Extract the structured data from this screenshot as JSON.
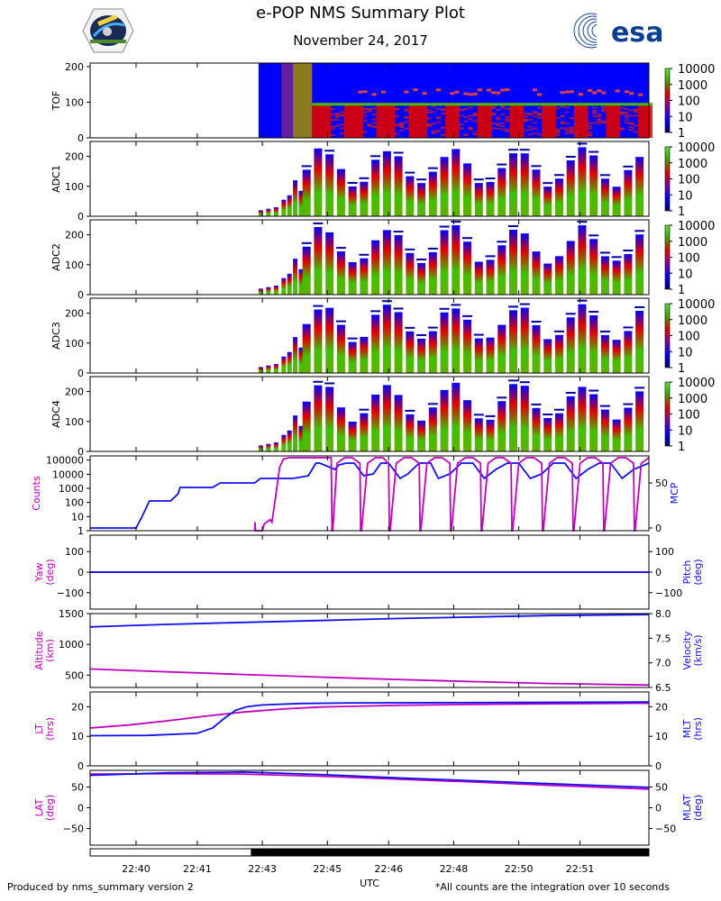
{
  "header": {
    "title": "e-POP NMS Summary Plot",
    "date": "November 24, 2017",
    "logo_left_name": "epop-mission-patch",
    "logo_right_text": "esa"
  },
  "footer": {
    "left": "Produced by nms_summary version 2",
    "right": "*All counts are the integration over 10 seconds",
    "xlabel": "UTC"
  },
  "colors": {
    "magenta": "#c000c0",
    "blue": "#1010ee",
    "spec_blue": "#0000ff",
    "spec_red": "#e00000",
    "spec_green": "#40c000"
  },
  "chart_data": {
    "type": "multi-panel-timeseries",
    "time_ticks": [
      "22:40",
      "22:41",
      "22:43",
      "22:45",
      "22:46",
      "22:48",
      "22:50",
      "22:51"
    ],
    "time_range_min": [
      0,
      14.6
    ],
    "time_tick_positions_min": [
      1.2,
      2.8,
      4.5,
      6.2,
      7.8,
      9.5,
      11.2,
      12.8
    ],
    "colorbar_ticks": [
      "10000",
      "1000",
      "100",
      "10",
      "1"
    ],
    "spectrograms": [
      {
        "name": "TOF",
        "ylabel": "TOF",
        "yticks": [
          0,
          100,
          200
        ],
        "ylim": [
          0,
          210
        ],
        "data_start_min": 4.4
      },
      {
        "name": "ADC1",
        "ylabel": "ADC1",
        "yticks": [
          0,
          100,
          200
        ],
        "ylim": [
          0,
          250
        ],
        "data_start_min": 4.4
      },
      {
        "name": "ADC2",
        "ylabel": "ADC2",
        "yticks": [
          0,
          100,
          200
        ],
        "ylim": [
          0,
          250
        ],
        "data_start_min": 4.4
      },
      {
        "name": "ADC3",
        "ylabel": "ADC3",
        "yticks": [
          0,
          100,
          200
        ],
        "ylim": [
          0,
          250
        ],
        "data_start_min": 4.4
      },
      {
        "name": "ADC4",
        "ylabel": "ADC4",
        "yticks": [
          0,
          100,
          200
        ],
        "ylim": [
          0,
          250
        ],
        "data_start_min": 4.4
      }
    ],
    "line_panels": [
      {
        "name": "counts-mcp",
        "left_label": "Counts",
        "right_label": "MCP",
        "left_ticks": [
          "100000",
          "10000",
          "1000",
          "100",
          "10",
          "1"
        ],
        "left_scale": "log",
        "left_range": [
          1,
          200000
        ],
        "right_ticks": [
          "50",
          "0"
        ],
        "right_range": [
          -3,
          80
        ],
        "series": [
          {
            "name": "MCP",
            "axis": "right",
            "color": "blue",
            "x": [
              0,
              1.2,
              1.35,
              1.55,
              2.1,
              2.3,
              2.35,
              3.2,
              3.4,
              4.3,
              4.45,
              5.3,
              5.7,
              5.9,
              6.0,
              6.4,
              6.5,
              6.7,
              6.9,
              7.15,
              7.4,
              7.6,
              7.8,
              8.1,
              8.3,
              8.6,
              8.9,
              9.1,
              9.4,
              9.7,
              10.0,
              10.3,
              10.6,
              10.9,
              11.2,
              11.5,
              11.8,
              12.1,
              12.4,
              12.7,
              13.0,
              13.3,
              13.6,
              13.9,
              14.2,
              14.6
            ],
            "y": [
              0,
              0,
              12,
              30,
              30,
              38,
              45,
              45,
              50,
              50,
              55,
              55,
              58,
              72,
              72,
              65,
              70,
              72,
              72,
              58,
              60,
              72,
              72,
              55,
              60,
              72,
              72,
              55,
              60,
              72,
              72,
              55,
              65,
              72,
              72,
              55,
              60,
              72,
              72,
              55,
              65,
              72,
              72,
              55,
              65,
              72
            ]
          },
          {
            "name": "Counts",
            "axis": "left",
            "color": "magenta",
            "x": [
              4.3,
              4.31,
              4.32,
              4.5,
              4.55,
              4.7,
              4.75,
              4.85,
              4.95,
              5.05,
              5.2,
              5.4,
              5.6,
              6.3,
              6.32,
              6.34,
              6.45,
              6.65,
              6.85,
              7.05,
              7.07,
              7.09,
              7.25,
              7.45,
              7.65,
              7.8,
              7.82,
              7.84,
              8.0,
              8.2,
              8.4,
              8.6,
              8.62,
              8.64,
              8.8,
              9.0,
              9.2,
              9.4,
              9.42,
              9.44,
              9.6,
              9.8,
              10.0,
              10.2,
              10.22,
              10.24,
              10.4,
              10.6,
              10.8,
              11.0,
              11.02,
              11.04,
              11.2,
              11.4,
              11.6,
              11.8,
              11.82,
              11.84,
              12.0,
              12.2,
              12.4,
              12.6,
              12.62,
              12.64,
              12.8,
              13.0,
              13.2,
              13.4,
              13.42,
              13.44,
              13.6,
              13.8,
              14.0,
              14.2,
              14.22,
              14.24,
              14.4,
              14.6
            ],
            "y": [
              1,
              4,
              1,
              1,
              3,
              6,
              4,
              300,
              30000,
              120000,
              150000,
              150000,
              150000,
              150000,
              1,
              1,
              60000,
              150000,
              150000,
              60000,
              1,
              1,
              60000,
              150000,
              150000,
              60000,
              1,
              1,
              60000,
              150000,
              150000,
              60000,
              1,
              1,
              60000,
              150000,
              150000,
              60000,
              1,
              1,
              60000,
              150000,
              150000,
              60000,
              1,
              1,
              60000,
              150000,
              150000,
              60000,
              1,
              1,
              60000,
              150000,
              150000,
              60000,
              1,
              1,
              60000,
              150000,
              150000,
              60000,
              1,
              1,
              60000,
              150000,
              150000,
              60000,
              1,
              1,
              60000,
              150000,
              150000,
              60000,
              1,
              1,
              60000,
              150000
            ]
          }
        ]
      },
      {
        "name": "yaw-pitch",
        "left_label": "Yaw",
        "left_label2": "(deg)",
        "right_label": "Pitch",
        "right_label2": "(deg)",
        "left_ticks": [
          "100",
          "0",
          "−100"
        ],
        "left_range": [
          -180,
          180
        ],
        "right_ticks": [
          "100",
          "0",
          "−100"
        ],
        "right_range": [
          -180,
          180
        ],
        "series": [
          {
            "name": "Yaw",
            "axis": "left",
            "color": "magenta",
            "x": [
              0,
              14.6
            ],
            "y": [
              0,
              0
            ]
          },
          {
            "name": "Pitch",
            "axis": "right",
            "color": "blue",
            "x": [
              0,
              14.6
            ],
            "y": [
              0,
              0
            ]
          }
        ]
      },
      {
        "name": "altitude-velocity",
        "left_label": "Altitude",
        "left_label2": "(km)",
        "right_label": "Velocity",
        "right_label2": "(km/s)",
        "left_ticks": [
          "1500",
          "1000",
          "500"
        ],
        "left_range": [
          300,
          1500
        ],
        "right_ticks": [
          "8.0",
          "7.5",
          "7.0",
          "6.5"
        ],
        "right_range": [
          6.5,
          8.0
        ],
        "series": [
          {
            "name": "Altitude",
            "axis": "left",
            "color": "magenta",
            "x": [
              0,
              2,
              4,
              6,
              8,
              10,
              12,
              14.6
            ],
            "y": [
              600,
              555,
              510,
              468,
              430,
              395,
              365,
              340
            ]
          },
          {
            "name": "Velocity",
            "axis": "right",
            "color": "blue",
            "x": [
              0,
              2,
              4,
              6,
              8,
              10,
              12,
              14.6
            ],
            "y": [
              7.73,
              7.78,
              7.82,
              7.86,
              7.9,
              7.93,
              7.96,
              7.98
            ]
          }
        ]
      },
      {
        "name": "lt-mlt",
        "left_label": "LT",
        "left_label2": "(hrs)",
        "right_label": "MLT",
        "right_label2": "(hrs)",
        "left_ticks": [
          "20",
          "10",
          "0"
        ],
        "left_range": [
          0,
          25
        ],
        "right_ticks": [
          "20",
          "10",
          "0"
        ],
        "right_range": [
          0,
          25
        ],
        "series": [
          {
            "name": "LT",
            "axis": "left",
            "color": "magenta",
            "x": [
              0,
              1,
              2,
              3,
              4,
              5,
              6,
              8,
              10,
              12,
              14.6
            ],
            "y": [
              12.8,
              13.8,
              15.2,
              16.8,
              18.2,
              19.2,
              19.9,
              20.5,
              20.8,
              21,
              21.2
            ]
          },
          {
            "name": "MLT",
            "axis": "right",
            "color": "blue",
            "x": [
              0,
              1.5,
              2.8,
              3.2,
              3.5,
              3.8,
              4.1,
              4.5,
              5.5,
              7,
              10,
              14.6
            ],
            "y": [
              10.2,
              10.3,
              11,
              12.8,
              16,
              18.8,
              20,
              20.6,
              21.1,
              21.3,
              21.4,
              21.6
            ]
          }
        ]
      },
      {
        "name": "lat-mlat",
        "left_label": "LAT",
        "left_label2": "(deg)",
        "right_label": "MLAT",
        "right_label2": "(deg)",
        "left_ticks": [
          "50",
          "0",
          "−50"
        ],
        "left_range": [
          -90,
          90
        ],
        "right_ticks": [
          "50",
          "0",
          "−50"
        ],
        "right_range": [
          -90,
          90
        ],
        "series": [
          {
            "name": "LAT",
            "axis": "left",
            "color": "magenta",
            "x": [
              0,
              2,
              4,
              6,
              8,
              10,
              12,
              14.6
            ],
            "y": [
              81,
              82,
              81,
              76,
              69,
              62,
              54,
              45
            ]
          },
          {
            "name": "MLAT",
            "axis": "right",
            "color": "blue",
            "x": [
              0,
              2,
              4,
              6,
              8,
              10,
              12,
              14.6
            ],
            "y": [
              78,
              84,
              86,
              80,
              72,
              65,
              58,
              49
            ]
          }
        ]
      }
    ],
    "coverage_bar": {
      "type": "eclipse-bar",
      "white_until_min": 4.2
    }
  }
}
